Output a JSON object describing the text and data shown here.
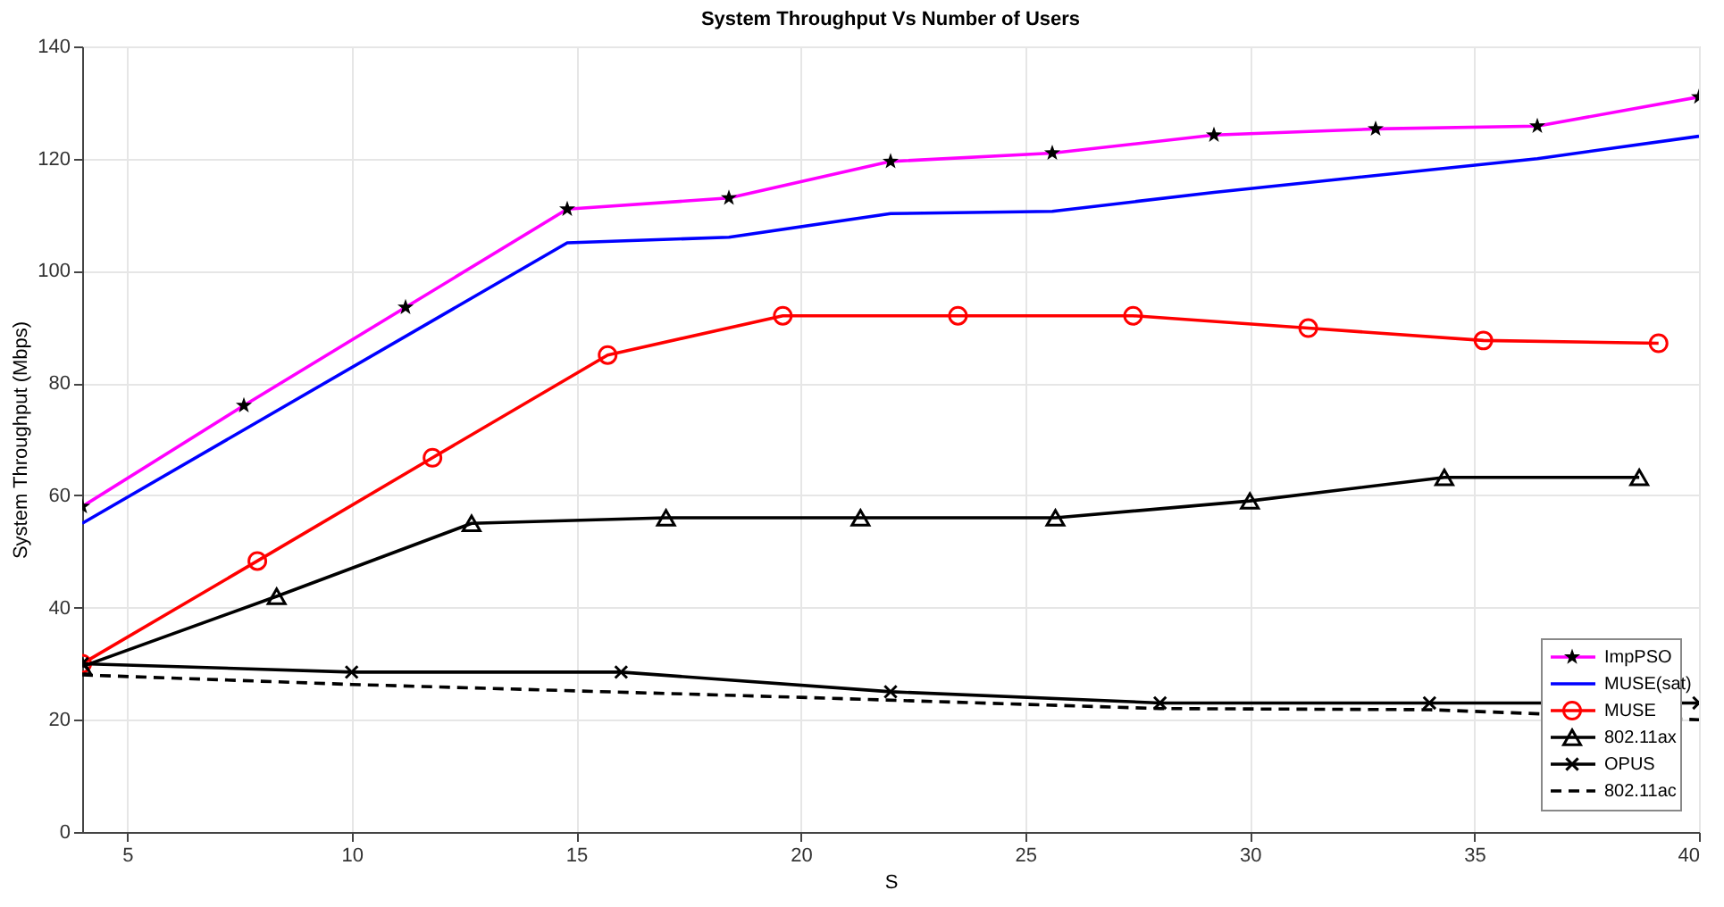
{
  "chart_data": {
    "type": "line",
    "title": "System Throughput Vs Number of Users",
    "xlabel": "S",
    "ylabel": "System Throughput (Mbps)",
    "xlim": [
      4,
      40
    ],
    "xticks": [
      5,
      10,
      15,
      20,
      25,
      30,
      35,
      40
    ],
    "ylim": [
      0,
      140
    ],
    "yticks": [
      0,
      20,
      40,
      60,
      80,
      100,
      120,
      140
    ],
    "grid": true,
    "legend": "bottom right",
    "series": [
      {
        "name": "ImpPSO",
        "color": "#ff00ff",
        "marker": "star",
        "line_style": "solid",
        "x": [
          4,
          7.6,
          11.2,
          14.8,
          18.4,
          22,
          25.6,
          29.2,
          32.8,
          36.4,
          40
        ],
        "values": [
          58,
          76,
          93.5,
          111,
          113,
          119.5,
          121,
          124.2,
          125.3,
          125.8,
          131
        ]
      },
      {
        "name": "MUSE(sat)",
        "color": "#0000ff",
        "marker": "none",
        "line_style": "solid",
        "x": [
          4,
          14.8,
          18.4,
          22,
          25.6,
          29.2,
          36.4,
          40
        ],
        "values": [
          55,
          105,
          106,
          110.2,
          110.6,
          114,
          120,
          124
        ]
      },
      {
        "name": "MUSE",
        "color": "#ff0000",
        "marker": "circle",
        "line_style": "solid",
        "x": [
          4,
          7.9,
          11.8,
          15.7,
          19.6,
          23.5,
          27.4,
          31.3,
          35.2,
          39.1
        ],
        "values": [
          30,
          48.3,
          66.7,
          85,
          92,
          92,
          92,
          89.8,
          87.6,
          87.1
        ]
      },
      {
        "name": "802.11ax",
        "color": "#000000",
        "marker": "triangle",
        "line_style": "solid",
        "x": [
          4,
          8.33,
          12.67,
          17,
          21.33,
          25.67,
          30,
          34.33,
          38.67
        ],
        "values": [
          29.5,
          42,
          55,
          56,
          56,
          56,
          59,
          63.2,
          63.2
        ]
      },
      {
        "name": "OPUS",
        "color": "#000000",
        "marker": "cross",
        "line_style": "solid",
        "x": [
          4,
          10,
          16,
          22,
          28,
          34,
          40
        ],
        "values": [
          30,
          28.5,
          28.5,
          25,
          23,
          23,
          23
        ]
      },
      {
        "name": "802.11ac",
        "color": "#000000",
        "marker": "none",
        "line_style": "dashed",
        "x": [
          4,
          10,
          20,
          28,
          34,
          40
        ],
        "values": [
          28,
          26.3,
          24,
          22,
          21.8,
          20
        ]
      }
    ]
  }
}
